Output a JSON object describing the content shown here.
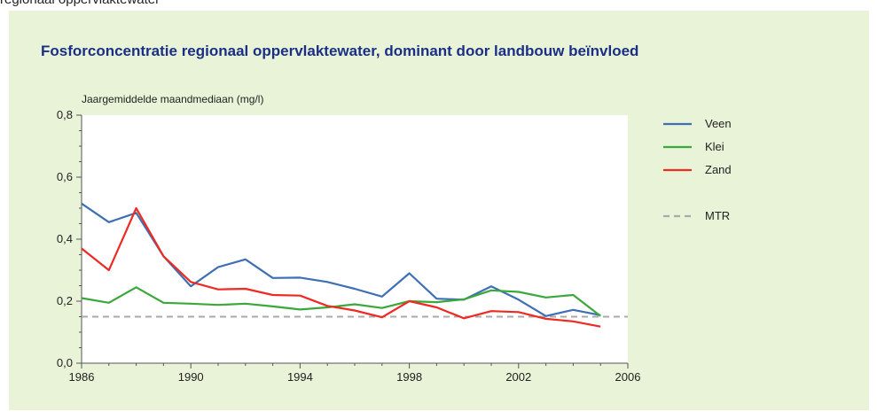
{
  "page": {
    "caption": "regionaal oppervlaktewater"
  },
  "chart_data": {
    "type": "line",
    "title": "Fosforconcentratie regionaal oppervlaktewater, dominant door landbouw beïnvloed",
    "ylabel": "Jaargemiddelde maandmediaan (mg/l)",
    "xlabel": "",
    "xlim": [
      1986,
      2006
    ],
    "ylim": [
      0,
      0.8
    ],
    "x_ticks": [
      1986,
      1990,
      1994,
      1998,
      2002,
      2006
    ],
    "y_ticks": [
      0,
      0.2,
      0.4,
      0.6,
      0.8
    ],
    "x_tick_labels": [
      "1986",
      "1990",
      "1994",
      "1998",
      "2002",
      "2006"
    ],
    "y_tick_labels": [
      "0,0",
      "0,2",
      "0,4",
      "0,6",
      "0,8"
    ],
    "x": [
      1986,
      1987,
      1988,
      1989,
      1990,
      1991,
      1992,
      1993,
      1994,
      1995,
      1996,
      1997,
      1998,
      1999,
      2000,
      2001,
      2002,
      2003,
      2004,
      2005
    ],
    "series": [
      {
        "name": "Veen",
        "color": "#3d6fb5",
        "values": [
          0.515,
          0.455,
          0.485,
          0.345,
          0.248,
          0.31,
          0.335,
          0.275,
          0.276,
          0.262,
          0.24,
          0.215,
          0.29,
          0.208,
          0.205,
          0.248,
          0.205,
          0.152,
          0.172,
          0.155
        ]
      },
      {
        "name": "Klei",
        "color": "#3aa83a",
        "values": [
          0.21,
          0.195,
          0.245,
          0.195,
          0.192,
          0.188,
          0.192,
          0.183,
          0.173,
          0.18,
          0.19,
          0.178,
          0.2,
          0.197,
          0.206,
          0.235,
          0.23,
          0.212,
          0.22,
          0.152
        ]
      },
      {
        "name": "Zand",
        "color": "#ee2a22",
        "values": [
          0.37,
          0.3,
          0.5,
          0.345,
          0.262,
          0.238,
          0.24,
          0.22,
          0.218,
          0.185,
          0.17,
          0.148,
          0.2,
          0.18,
          0.145,
          0.168,
          0.165,
          0.143,
          0.135,
          0.118
        ]
      }
    ],
    "reference_line": {
      "name": "MTR",
      "value": 0.15,
      "color": "#aaaaaa",
      "style": "dashed"
    },
    "legend": {
      "placement": "right",
      "entries": [
        "Veen",
        "Klei",
        "Zand",
        "MTR"
      ]
    },
    "grid": false,
    "plot_background": "#ffffff",
    "panel_background": "#e8f3d8"
  }
}
